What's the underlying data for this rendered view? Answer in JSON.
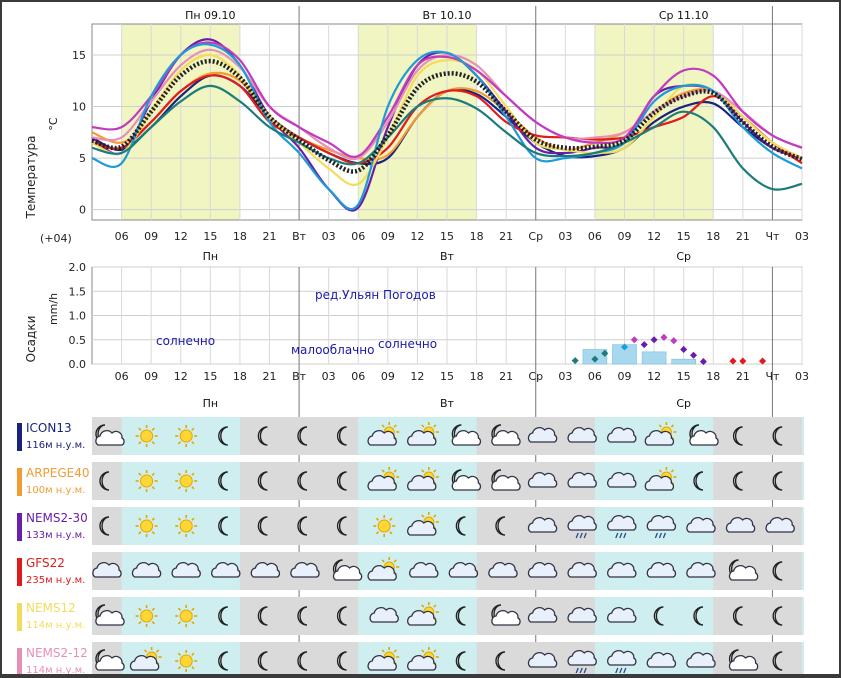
{
  "days": {
    "top": [
      "Пн 09.10",
      "Вт 10.10",
      "Ср 11.10"
    ],
    "short": [
      "Пн",
      "Вт",
      "Ср"
    ]
  },
  "timezone": "(+04)",
  "hour_labels": [
    "06",
    "09",
    "12",
    "15",
    "18",
    "21",
    "Вт",
    "03",
    "06",
    "09",
    "12",
    "15",
    "18",
    "21",
    "Ср",
    "03",
    "06",
    "09",
    "12",
    "15",
    "18",
    "21",
    "Чт",
    "03"
  ],
  "temp_axis_title": "Температура",
  "temp_unit": "°C",
  "precip_axis_title": "Осадки",
  "precip_unit": "mm/h",
  "annotations": {
    "watermark": "ред.Ульян Погодов",
    "sunny1": "солнечно",
    "partly": "малооблачно",
    "sunny2": "солнечно"
  },
  "models": [
    {
      "name": "ICON13",
      "elev": "116м н.у.м.",
      "color": "#1a237e",
      "icons": [
        "moon-cloud",
        "sun",
        "sun",
        "moon",
        "moon",
        "moon",
        "moon",
        "sun-cloud",
        "sun-cloud",
        "moon-cloud",
        "moon-cloud",
        "cloud",
        "cloud",
        "cloud",
        "sun-cloud",
        "moon-cloud",
        "moon",
        "moon"
      ]
    },
    {
      "name": "ARPEGE40",
      "elev": "100м н.у.м.",
      "color": "#f39c34",
      "icons": [
        "moon",
        "sun",
        "sun",
        "moon",
        "moon",
        "moon",
        "moon",
        "sun-cloud",
        "sun-cloud",
        "moon-cloud",
        "moon-cloud",
        "cloud",
        "cloud",
        "cloud",
        "sun-cloud",
        "moon",
        "moon",
        "moon"
      ]
    },
    {
      "name": "NEMS2-30",
      "elev": "133м н.у.м.",
      "color": "#6a1fa8",
      "icons": [
        "moon",
        "sun",
        "sun",
        "moon",
        "moon",
        "moon",
        "moon",
        "sun",
        "sun-cloud",
        "moon",
        "moon",
        "cloud",
        "rain-cloud",
        "rain-cloud",
        "rain-cloud",
        "cloud",
        "cloud",
        "cloud"
      ]
    },
    {
      "name": "GFS22",
      "elev": "235м н.у.м.",
      "color": "#e01b1b",
      "icons": [
        "cloud",
        "cloud",
        "cloud",
        "cloud",
        "cloud",
        "cloud",
        "moon-cloud",
        "sun-cloud",
        "cloud",
        "cloud",
        "cloud",
        "cloud",
        "cloud",
        "cloud",
        "cloud",
        "cloud",
        "moon-cloud",
        "moon"
      ]
    },
    {
      "name": "NEMS12",
      "elev": "114м н.у.м.",
      "color": "#f3dc5a",
      "icons": [
        "moon-cloud",
        "sun",
        "sun",
        "moon",
        "moon",
        "moon",
        "moon",
        "cloud",
        "sun-cloud",
        "moon",
        "moon-cloud",
        "cloud",
        "cloud",
        "cloud",
        "moon",
        "moon",
        "moon",
        "moon"
      ]
    },
    {
      "name": "NEMS2-12",
      "elev": "114м н.у.м.",
      "color": "#e88fb8",
      "icons": [
        "moon-cloud",
        "sun-cloud",
        "sun",
        "moon",
        "moon",
        "moon",
        "moon",
        "sun-cloud",
        "sun-cloud",
        "moon",
        "moon",
        "cloud",
        "rain-cloud",
        "rain-cloud",
        "cloud",
        "cloud",
        "moon-cloud",
        "moon"
      ]
    }
  ],
  "chart_data": [
    {
      "type": "line",
      "ylabel": "Температура",
      "unit": "°C",
      "ylim": [
        -1,
        18
      ],
      "yticks": [
        0,
        5,
        10,
        15
      ],
      "x_hours": [
        3,
        6,
        9,
        12,
        15,
        18,
        21,
        24,
        27,
        30,
        33,
        36,
        39,
        42,
        45,
        48,
        51,
        54,
        57,
        60,
        63,
        66,
        69,
        72,
        75
      ],
      "series": [
        {
          "color": "#1a237e",
          "values": [
            7,
            5.8,
            8,
            11,
            13,
            12,
            9,
            7,
            5.5,
            4.5,
            5,
            9,
            11.5,
            11.2,
            9,
            6.5,
            5.2,
            5.2,
            6,
            8.5,
            10,
            10.3,
            8,
            6,
            5
          ]
        },
        {
          "color": "#f39c34",
          "values": [
            7.5,
            6.5,
            8.5,
            11.5,
            13.2,
            12.5,
            9,
            7,
            5.8,
            5,
            5.3,
            9,
            11.5,
            11.5,
            9.5,
            7,
            5.8,
            6.5,
            7.5,
            9.5,
            11.3,
            11.5,
            9,
            6.5,
            5
          ]
        },
        {
          "color": "#6a1fa8",
          "values": [
            7,
            5.5,
            10.5,
            15,
            16.5,
            14,
            9,
            6,
            2,
            0.2,
            8,
            14,
            15.2,
            13,
            9.5,
            6,
            5.5,
            6,
            6.5,
            11,
            12,
            11.5,
            8.5,
            6,
            5
          ]
        },
        {
          "color": "#e01b1b",
          "values": [
            6.5,
            6,
            8.5,
            11.5,
            13,
            12,
            8.5,
            7,
            5.5,
            4.5,
            6,
            10,
            11.5,
            11,
            8.5,
            7.2,
            7,
            6.8,
            7,
            8,
            9,
            11,
            9,
            6.5,
            4.5
          ]
        },
        {
          "color": "#f3dc5a",
          "values": [
            6.5,
            5.5,
            9.5,
            13.5,
            15,
            13,
            9,
            6.5,
            4,
            2.5,
            7,
            13,
            14.5,
            13.5,
            10,
            6.5,
            5.8,
            5.5,
            6,
            9,
            12,
            11.5,
            9,
            6.5,
            5
          ]
        },
        {
          "color": "#e88fb8",
          "values": [
            7,
            7,
            10.5,
            14,
            15.5,
            13.8,
            10,
            8,
            6,
            5,
            8.5,
            13.5,
            15,
            14,
            11,
            8.5,
            7,
            7,
            7.5,
            9.5,
            11,
            11.5,
            9.5,
            7.2,
            6
          ]
        },
        {
          "color": "#c13bc1",
          "values": [
            8,
            8,
            11,
            15,
            16.2,
            14.5,
            10,
            8,
            6.5,
            5.2,
            9,
            14,
            14.8,
            13.5,
            11,
            8.5,
            7,
            6.5,
            7,
            11,
            13.5,
            13,
            9.5,
            7.2,
            6
          ]
        },
        {
          "color": "#1e9bd7",
          "values": [
            5,
            4.5,
            11,
            15,
            16,
            14,
            8.5,
            5.5,
            2,
            0.5,
            10,
            14.5,
            15.2,
            13,
            9,
            5,
            5,
            5.5,
            6.5,
            10.5,
            12,
            11.5,
            8,
            5.5,
            4
          ]
        },
        {
          "color": "#1c7c7c",
          "values": [
            6,
            5.5,
            8,
            10.5,
            12,
            10.5,
            8,
            6.5,
            5,
            4.5,
            7,
            10,
            10.8,
            9.8,
            7.5,
            5.5,
            5.2,
            5.5,
            6.5,
            8,
            9.5,
            8,
            4,
            2,
            2.5
          ]
        },
        {
          "color": "#333333",
          "mean": true,
          "values": [
            6.7,
            6.1,
            9.5,
            13,
            14.4,
            12.8,
            9,
            6.8,
            4.8,
            3.8,
            7.2,
            11.8,
            13.2,
            12.4,
            9.5,
            6.8,
            6,
            6.1,
            6.7,
            9.4,
            11,
            11.3,
            8.5,
            6.1,
            4.9
          ]
        }
      ]
    },
    {
      "type": "scatter",
      "ylabel": "Осадки",
      "unit": "mm/h",
      "ylim": [
        0,
        2.0
      ],
      "yticks": [
        0.0,
        0.5,
        1.0,
        1.5,
        2.0
      ],
      "bars": [
        {
          "x": 54,
          "value": 0.3
        },
        {
          "x": 57,
          "value": 0.4
        },
        {
          "x": 60,
          "value": 0.25
        },
        {
          "x": 63,
          "value": 0.1
        }
      ],
      "points": [
        {
          "x": 52,
          "y": 0.07,
          "color": "#1c7c7c"
        },
        {
          "x": 54,
          "y": 0.1,
          "color": "#1c7c7c"
        },
        {
          "x": 55,
          "y": 0.22,
          "color": "#1c7c7c"
        },
        {
          "x": 57,
          "y": 0.35,
          "color": "#1e9bd7"
        },
        {
          "x": 58,
          "y": 0.5,
          "color": "#c13bc1"
        },
        {
          "x": 59,
          "y": 0.4,
          "color": "#6a1fa8"
        },
        {
          "x": 60,
          "y": 0.5,
          "color": "#6a1fa8"
        },
        {
          "x": 61,
          "y": 0.55,
          "color": "#c13bc1"
        },
        {
          "x": 62,
          "y": 0.48,
          "color": "#c13bc1"
        },
        {
          "x": 63,
          "y": 0.3,
          "color": "#6a1fa8"
        },
        {
          "x": 64,
          "y": 0.18,
          "color": "#6a1fa8"
        },
        {
          "x": 65,
          "y": 0.05,
          "color": "#6a1fa8"
        },
        {
          "x": 68,
          "y": 0.06,
          "color": "#e01b1b"
        },
        {
          "x": 69,
          "y": 0.06,
          "color": "#e01b1b"
        },
        {
          "x": 71,
          "y": 0.06,
          "color": "#e01b1b"
        }
      ]
    }
  ]
}
